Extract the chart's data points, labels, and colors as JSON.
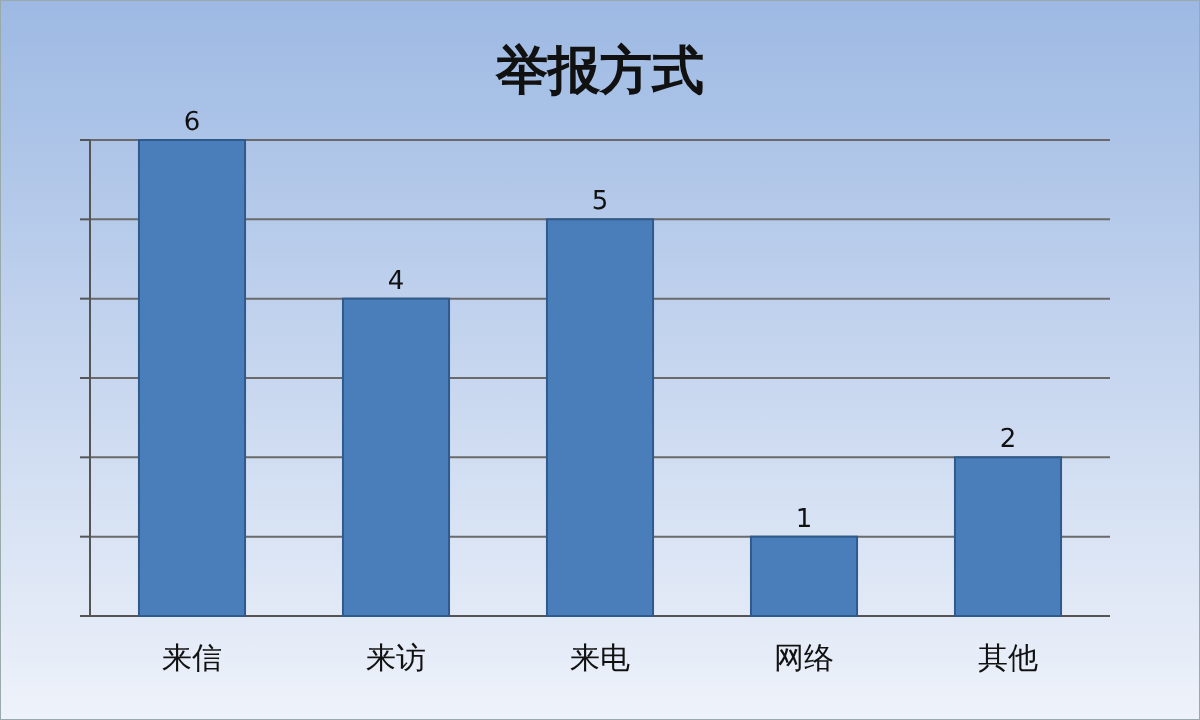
{
  "chart_data": {
    "type": "bar",
    "title": "举报方式",
    "categories": [
      "来信",
      "来访",
      "来电",
      "网络",
      "其他"
    ],
    "values": [
      6,
      4,
      5,
      1,
      2
    ],
    "color": "#4a7ebb",
    "ylim": [
      0,
      6
    ],
    "yticks": [
      {
        "value": 0,
        "label": null
      },
      {
        "value": 1,
        "label": null
      },
      {
        "value": 2,
        "label": null
      },
      {
        "value": 3,
        "label": null
      },
      {
        "value": 4,
        "label": null
      },
      {
        "value": 5,
        "label": null
      },
      {
        "value": 6,
        "label": null
      }
    ],
    "tick_labels": "x",
    "grid": true,
    "data_labels": true
  }
}
